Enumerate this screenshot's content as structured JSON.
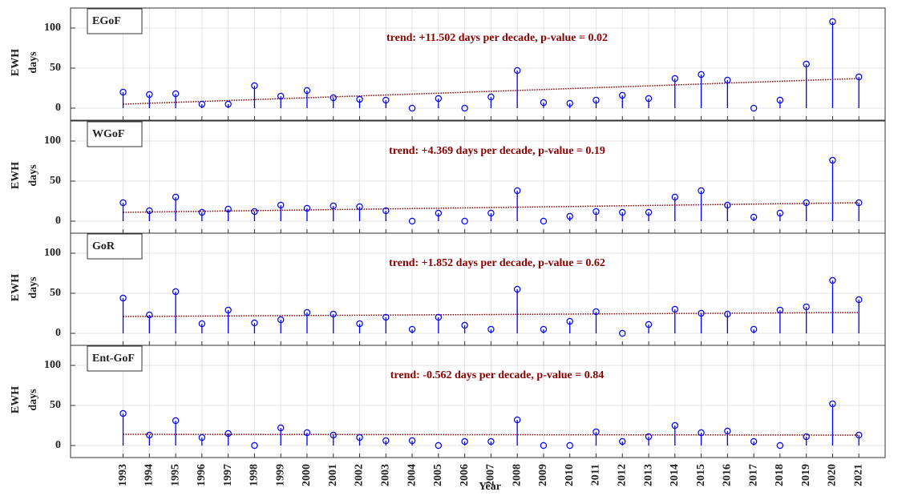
{
  "chart_data": [
    {
      "type": "stem",
      "title": "EGoF",
      "annotation": "trend: +11.502 days per decade, p-value = 0.02",
      "ylabel": [
        "EWH",
        "days"
      ],
      "x": [
        1993,
        1994,
        1995,
        1996,
        1997,
        1998,
        1999,
        2000,
        2001,
        2002,
        2003,
        2004,
        2005,
        2006,
        2007,
        2008,
        2009,
        2010,
        2011,
        2012,
        2013,
        2014,
        2015,
        2016,
        2017,
        2018,
        2019,
        2020,
        2021
      ],
      "values": [
        20,
        17,
        18,
        5,
        5,
        28,
        15,
        22,
        13,
        11,
        10,
        0,
        12,
        0,
        14,
        47,
        7,
        6,
        10,
        16,
        12,
        37,
        42,
        35,
        0,
        10,
        55,
        108,
        39
      ],
      "color": "#0000ff",
      "trend": {
        "x": [
          1993,
          2021
        ],
        "values": [
          5,
          37
        ],
        "color": "#8b0000"
      },
      "xlim": [
        1991,
        2022
      ],
      "ylim": [
        -15,
        125
      ],
      "yticks": [
        0,
        50,
        100
      ],
      "grid": true
    },
    {
      "type": "stem",
      "title": "WGoF",
      "annotation": "trend: +4.369 days per decade, p-value = 0.19",
      "ylabel": [
        "EWH",
        "days"
      ],
      "x": [
        1993,
        1994,
        1995,
        1996,
        1997,
        1998,
        1999,
        2000,
        2001,
        2002,
        2003,
        2004,
        2005,
        2006,
        2007,
        2008,
        2009,
        2010,
        2011,
        2012,
        2013,
        2014,
        2015,
        2016,
        2017,
        2018,
        2019,
        2020,
        2021
      ],
      "values": [
        23,
        13,
        30,
        11,
        15,
        12,
        20,
        16,
        19,
        18,
        13,
        0,
        10,
        0,
        10,
        38,
        0,
        6,
        12,
        11,
        11,
        30,
        38,
        20,
        5,
        10,
        23,
        76,
        23
      ],
      "color": "#0000ff",
      "trend": {
        "x": [
          1993,
          2021
        ],
        "values": [
          11,
          23
        ],
        "color": "#8b0000"
      },
      "xlim": [
        1991,
        2022
      ],
      "ylim": [
        -15,
        125
      ],
      "yticks": [
        0,
        50,
        100
      ],
      "grid": true
    },
    {
      "type": "stem",
      "title": "GoR",
      "annotation": "trend: +1.852 days per decade, p-value = 0.62",
      "ylabel": [
        "EWH",
        "days"
      ],
      "x": [
        1993,
        1994,
        1995,
        1996,
        1997,
        1998,
        1999,
        2000,
        2001,
        2002,
        2003,
        2004,
        2005,
        2006,
        2007,
        2008,
        2009,
        2010,
        2011,
        2012,
        2013,
        2014,
        2015,
        2016,
        2017,
        2018,
        2019,
        2020,
        2021
      ],
      "values": [
        44,
        23,
        52,
        12,
        29,
        13,
        17,
        26,
        24,
        12,
        20,
        5,
        20,
        10,
        5,
        55,
        5,
        15,
        27,
        0,
        11,
        30,
        25,
        24,
        5,
        29,
        33,
        66,
        42
      ],
      "color": "#0000ff",
      "trend": {
        "x": [
          1993,
          2021
        ],
        "values": [
          21,
          26
        ],
        "color": "#8b0000"
      },
      "xlim": [
        1991,
        2022
      ],
      "ylim": [
        -15,
        125
      ],
      "yticks": [
        0,
        50,
        100
      ],
      "grid": true
    },
    {
      "type": "stem",
      "title": "Ent-GoF",
      "annotation": "trend: -0.562 days per decade, p-value = 0.84",
      "ylabel": [
        "EWH",
        "days"
      ],
      "xlabel": "Year",
      "x": [
        1993,
        1994,
        1995,
        1996,
        1997,
        1998,
        1999,
        2000,
        2001,
        2002,
        2003,
        2004,
        2005,
        2006,
        2007,
        2008,
        2009,
        2010,
        2011,
        2012,
        2013,
        2014,
        2015,
        2016,
        2017,
        2018,
        2019,
        2020,
        2021
      ],
      "values": [
        40,
        13,
        31,
        10,
        15,
        0,
        22,
        16,
        13,
        10,
        6,
        6,
        0,
        5,
        5,
        32,
        0,
        0,
        17,
        5,
        11,
        25,
        16,
        18,
        5,
        0,
        11,
        52,
        13
      ],
      "color": "#0000ff",
      "trend": {
        "x": [
          1993,
          2021
        ],
        "values": [
          14,
          13
        ],
        "color": "#8b0000"
      },
      "xlim": [
        1991,
        2022
      ],
      "ylim": [
        -15,
        125
      ],
      "yticks": [
        0,
        50,
        100
      ],
      "grid": true,
      "xticks": [
        1993,
        1994,
        1995,
        1996,
        1997,
        1998,
        1999,
        2000,
        2001,
        2002,
        2003,
        2004,
        2005,
        2006,
        2007,
        2008,
        2009,
        2010,
        2011,
        2012,
        2013,
        2014,
        2015,
        2016,
        2017,
        2018,
        2019,
        2020,
        2021
      ]
    }
  ]
}
